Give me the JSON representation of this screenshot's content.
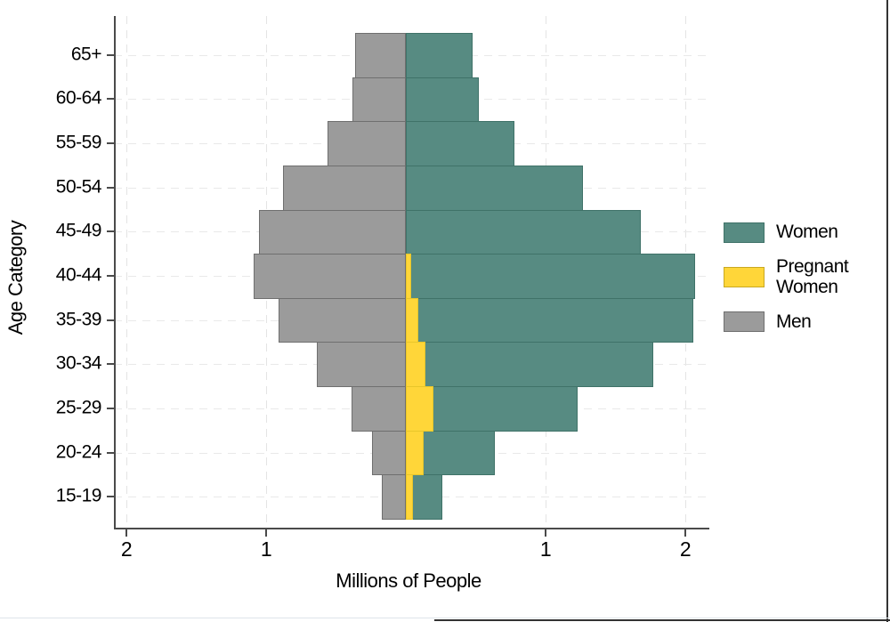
{
  "figure": {
    "background": "#FFFFFF",
    "window_edge_color": "#333333",
    "slide_edge_color": "#DEE4EA"
  },
  "chart_data": {
    "type": "bar",
    "variant": "population_pyramid",
    "orientation": "horizontal",
    "title": "",
    "xlabel": "Millions of People",
    "ylabel": "Age Category",
    "categories": [
      "65+",
      "60-64",
      "55-59",
      "50-54",
      "45-49",
      "40-44",
      "35-39",
      "30-34",
      "25-29",
      "20-24",
      "15-19"
    ],
    "unit": "millions",
    "axis": {
      "x_tick_values": [
        -2,
        -1,
        1,
        2
      ],
      "x_tick_labels": [
        "2",
        "1",
        "1",
        "2"
      ],
      "x_range": [
        -2.15,
        2.17
      ],
      "grid": true,
      "grid_style": "dashed",
      "axis_color": "#4A4A4A",
      "grid_color": "#E4E4E4",
      "text_color": "#000000"
    },
    "series": [
      {
        "name": "Men",
        "side": "left",
        "fill": "#9B9B9B",
        "stroke": "#6F6F6F",
        "values": [
          0.36,
          0.38,
          0.56,
          0.88,
          1.05,
          1.09,
          0.91,
          0.64,
          0.39,
          0.24,
          0.17
        ]
      },
      {
        "name": "Women",
        "side": "right",
        "fill": "#578B82",
        "stroke": "#3F7268",
        "values": [
          0.48,
          0.52,
          0.78,
          1.27,
          1.68,
          2.07,
          2.06,
          1.77,
          1.23,
          0.64,
          0.26
        ]
      },
      {
        "name": "Pregnant Women",
        "side": "right",
        "overlay": true,
        "fill": "#FFD639",
        "stroke": "#E8C62A",
        "values": [
          0,
          0,
          0,
          0,
          0,
          0.04,
          0.09,
          0.14,
          0.2,
          0.13,
          0.05
        ]
      }
    ],
    "legend": {
      "position": "right-middle",
      "items": [
        {
          "label": "Women",
          "fill": "#578B82",
          "stroke": "#3F7268"
        },
        {
          "label": "Pregnant Women",
          "fill": "#FFD639",
          "stroke": "#C9A821"
        },
        {
          "label": "Men",
          "fill": "#9B9B9B",
          "stroke": "#6F6F6F"
        }
      ]
    }
  }
}
